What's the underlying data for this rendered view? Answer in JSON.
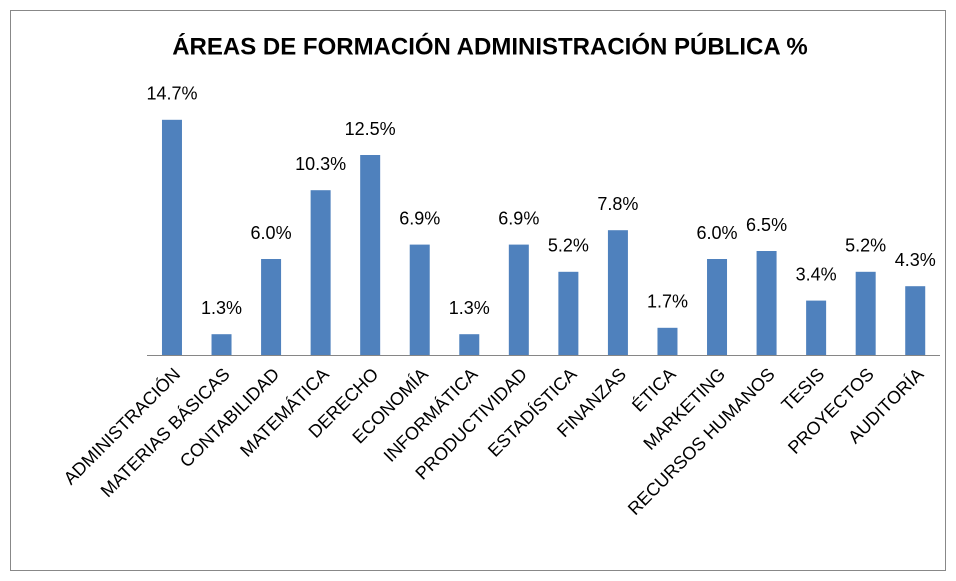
{
  "chart_data": {
    "type": "bar",
    "title": "ÁREAS DE FORMACIÓN ADMINISTRACIÓN PÚBLICA %",
    "categories": [
      "ADMINISTRACIÓN",
      "MATERIAS BÁSICAS",
      "CONTABILIDAD",
      "MATEMÁTICA",
      "DERECHO",
      "ECONOMÍA",
      "INFORMÁTICA",
      "PRODUCTIVIDAD",
      "ESTADÍSTICA",
      "FINANZAS",
      "ÉTICA",
      "MARKETING",
      "RECURSOS HUMANOS",
      "TESIS",
      "PROYECTOS",
      "AUDITORÍA"
    ],
    "values": [
      14.7,
      1.3,
      6.0,
      10.3,
      12.5,
      6.9,
      1.3,
      6.9,
      5.2,
      7.8,
      1.7,
      6.0,
      6.5,
      3.4,
      5.2,
      4.3
    ],
    "value_labels": [
      "14.7%",
      "1.3%",
      "6.0%",
      "10.3%",
      "12.5%",
      "6.9%",
      "1.3%",
      "6.9%",
      "5.2%",
      "7.8%",
      "1.7%",
      "6.0%",
      "6.5%",
      "3.4%",
      "5.2%",
      "4.3%"
    ],
    "color": "#4f81bd",
    "ylim": [
      0,
      16
    ]
  }
}
